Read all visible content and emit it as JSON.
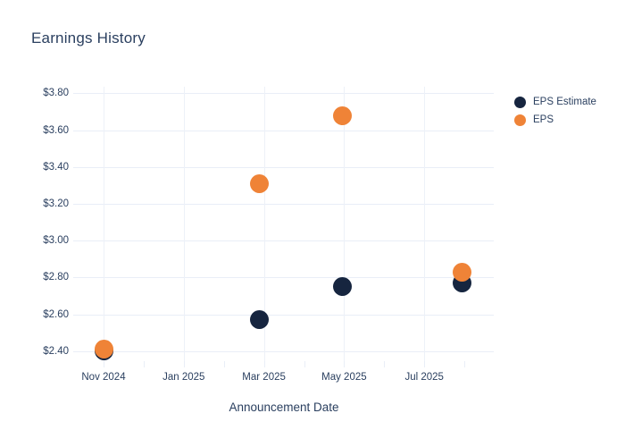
{
  "chart_data": {
    "type": "scatter",
    "title": "Earnings History",
    "xlabel": "Announcement Date",
    "ylabel": "",
    "grid": true,
    "legend_position": "right-top",
    "background_color": "#ffffff",
    "text_color": "#2a3f5f",
    "gridline_color": "#e9eef7",
    "ylim": [
      2.35,
      3.84
    ],
    "y_ticks": [
      2.4,
      2.6,
      2.8,
      3.0,
      3.2,
      3.4,
      3.6,
      3.8
    ],
    "y_tick_labels": [
      "$2.40",
      "$2.60",
      "$2.80",
      "$3.00",
      "$3.20",
      "$3.40",
      "$3.60",
      "$3.80"
    ],
    "x_tick_labels": [
      "Nov 2024",
      "Jan 2025",
      "Mar 2025",
      "May 2025",
      "Jul 2025"
    ],
    "x_tick_month_offsets": [
      0,
      2,
      4,
      6,
      8
    ],
    "x_minor_tick_month_offsets": [
      0,
      1,
      2,
      3,
      4,
      5,
      6,
      7,
      8,
      9
    ],
    "series": [
      {
        "name": "EPS Estimate",
        "color": "#16253f",
        "points": [
          {
            "date": "2024-11-01",
            "value": 2.4
          },
          {
            "date": "2025-02-28",
            "value": 2.57
          },
          {
            "date": "2025-04-30",
            "value": 2.75
          },
          {
            "date": "2025-07-30",
            "value": 2.77
          }
        ]
      },
      {
        "name": "EPS",
        "color": "#ef8337",
        "points": [
          {
            "date": "2024-11-01",
            "value": 2.41
          },
          {
            "date": "2025-02-28",
            "value": 3.31
          },
          {
            "date": "2025-04-30",
            "value": 3.68
          },
          {
            "date": "2025-07-30",
            "value": 2.83
          }
        ]
      }
    ]
  }
}
